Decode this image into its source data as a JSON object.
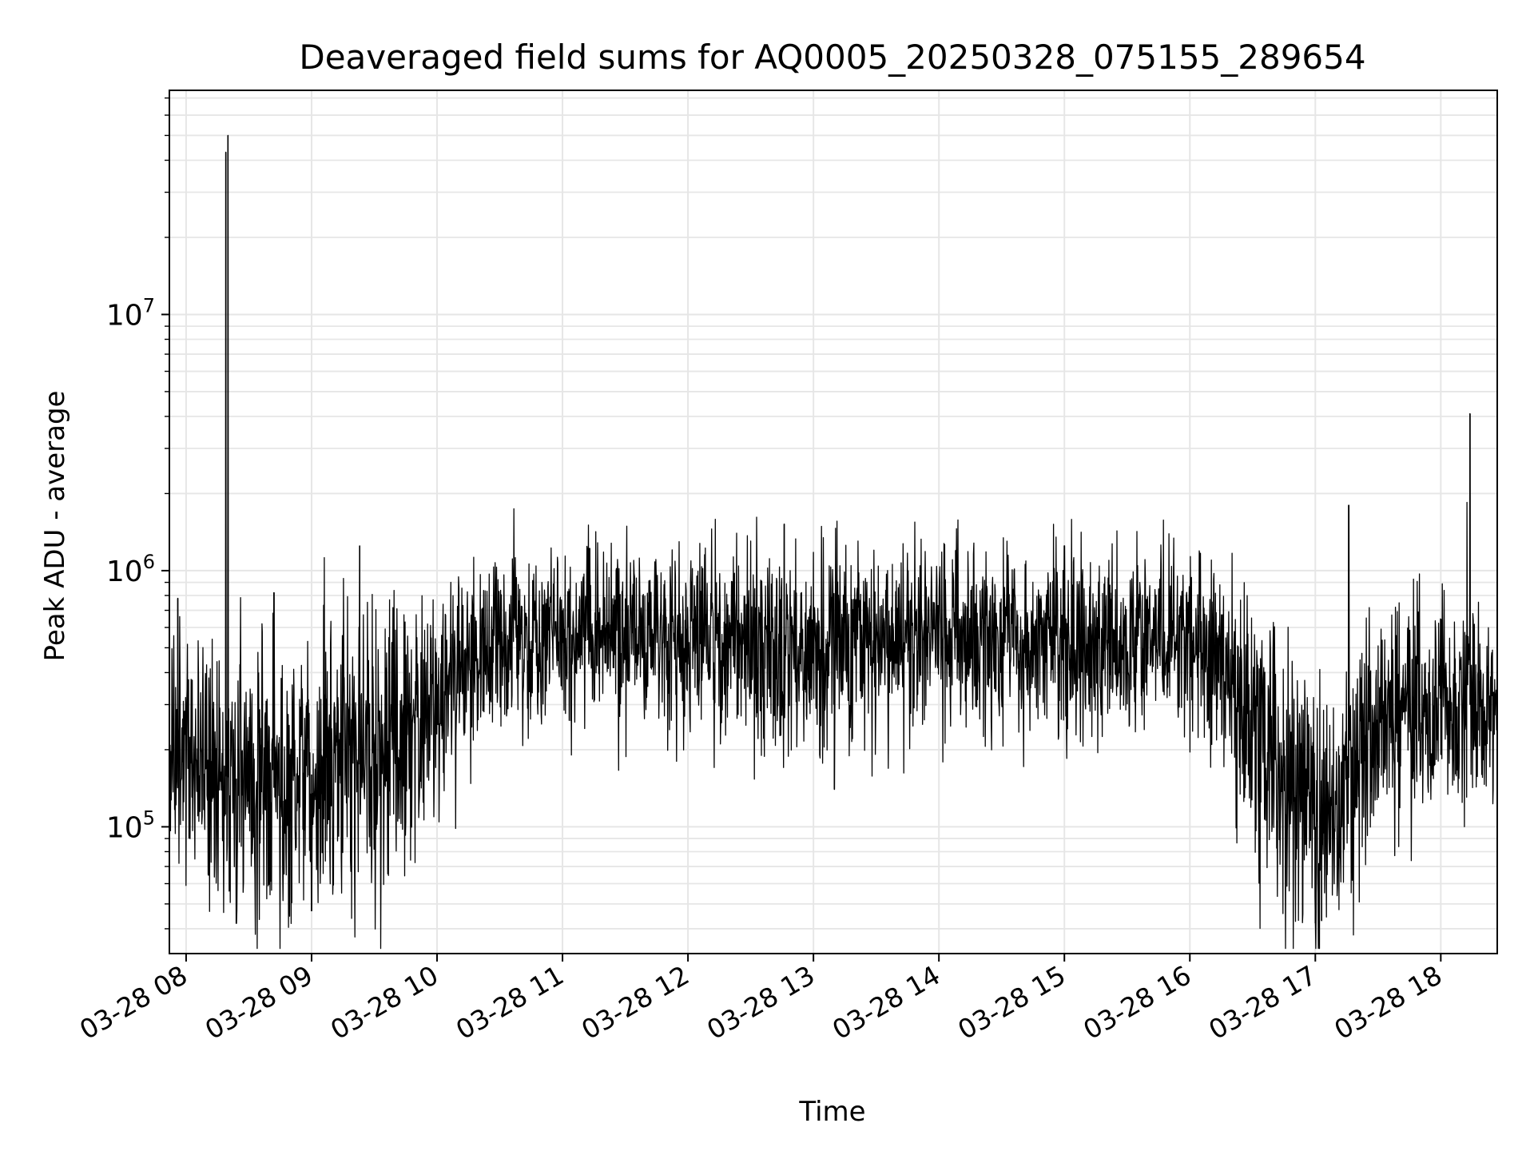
{
  "chart_data": {
    "type": "line",
    "title": "Deaveraged field sums for AQ0005_20250328_075155_289654",
    "xlabel": "Time",
    "ylabel": "Peak ADU - average",
    "yscale": "log",
    "grid": true,
    "line_color": "#000000",
    "grid_color": "#e6e6e6",
    "xlim": [
      "2025-03-28 07:52",
      "2025-03-28 18:27"
    ],
    "ylim": [
      32000,
      75000000
    ],
    "xticks": [
      {
        "label": "03-28 08",
        "time": "2025-03-28 08:00"
      },
      {
        "label": "03-28 09",
        "time": "2025-03-28 09:00"
      },
      {
        "label": "03-28 10",
        "time": "2025-03-28 10:00"
      },
      {
        "label": "03-28 11",
        "time": "2025-03-28 11:00"
      },
      {
        "label": "03-28 12",
        "time": "2025-03-28 12:00"
      },
      {
        "label": "03-28 13",
        "time": "2025-03-28 13:00"
      },
      {
        "label": "03-28 14",
        "time": "2025-03-28 14:00"
      },
      {
        "label": "03-28 15",
        "time": "2025-03-28 15:00"
      },
      {
        "label": "03-28 16",
        "time": "2025-03-28 16:00"
      },
      {
        "label": "03-28 17",
        "time": "2025-03-28 17:00"
      },
      {
        "label": "03-28 18",
        "time": "2025-03-28 18:00"
      }
    ],
    "yticks": [
      {
        "base": "10",
        "exp": "5",
        "value": 100000
      },
      {
        "base": "10",
        "exp": "6",
        "value": 1000000
      },
      {
        "base": "10",
        "exp": "7",
        "value": 10000000
      }
    ],
    "series": [
      {
        "x": [
          "2025-03-28 07:52",
          "2025-03-28 08:00",
          "2025-03-28 08:15",
          "2025-03-28 08:30",
          "2025-03-28 08:45",
          "2025-03-28 09:00",
          "2025-03-28 09:15",
          "2025-03-28 09:30",
          "2025-03-28 09:45",
          "2025-03-28 10:00",
          "2025-03-28 10:15",
          "2025-03-28 10:30",
          "2025-03-28 10:45",
          "2025-03-28 11:00",
          "2025-03-28 11:15",
          "2025-03-28 11:30",
          "2025-03-28 11:45",
          "2025-03-28 12:00",
          "2025-03-28 12:15",
          "2025-03-28 12:30",
          "2025-03-28 12:45",
          "2025-03-28 13:00",
          "2025-03-28 13:15",
          "2025-03-28 13:30",
          "2025-03-28 13:45",
          "2025-03-28 14:00",
          "2025-03-28 14:15",
          "2025-03-28 14:30",
          "2025-03-28 14:45",
          "2025-03-28 15:00",
          "2025-03-28 15:15",
          "2025-03-28 15:30",
          "2025-03-28 15:45",
          "2025-03-28 16:00",
          "2025-03-28 16:15",
          "2025-03-28 16:30",
          "2025-03-28 16:45",
          "2025-03-28 17:00",
          "2025-03-28 17:15",
          "2025-03-28 17:30",
          "2025-03-28 17:45",
          "2025-03-28 18:00",
          "2025-03-28 18:15",
          "2025-03-28 18:27"
        ],
        "y": [
          180000,
          200000,
          160000,
          150000,
          140000,
          160000,
          170000,
          180000,
          200000,
          280000,
          420000,
          520000,
          540000,
          560000,
          580000,
          560000,
          540000,
          530000,
          520000,
          510000,
          500000,
          500000,
          510000,
          520000,
          530000,
          540000,
          550000,
          560000,
          550000,
          540000,
          520000,
          520000,
          530000,
          520000,
          400000,
          260000,
          160000,
          100000,
          150000,
          230000,
          270000,
          290000,
          300000,
          300000
        ],
        "spread": [
          0.2,
          0.22,
          0.24,
          0.26,
          0.26,
          0.28,
          0.28,
          0.28,
          0.26,
          0.22,
          0.18,
          0.17,
          0.17,
          0.17,
          0.17,
          0.17,
          0.18,
          0.19,
          0.19,
          0.19,
          0.19,
          0.19,
          0.19,
          0.19,
          0.19,
          0.18,
          0.18,
          0.18,
          0.18,
          0.18,
          0.18,
          0.18,
          0.18,
          0.18,
          0.2,
          0.22,
          0.26,
          0.26,
          0.24,
          0.22,
          0.22,
          0.22,
          0.22,
          0.22
        ],
        "spikes": [
          {
            "time": "2025-03-28 07:56",
            "value": 780000
          },
          {
            "time": "2025-03-28 08:19",
            "value": 43000000
          },
          {
            "time": "2025-03-28 08:20",
            "value": 50000000
          },
          {
            "time": "2025-03-28 08:24",
            "value": 42000
          },
          {
            "time": "2025-03-28 08:42",
            "value": 820000
          },
          {
            "time": "2025-03-28 09:00",
            "value": 47000
          },
          {
            "time": "2025-03-28 09:23",
            "value": 1250000
          },
          {
            "time": "2025-03-28 11:13",
            "value": 1220000
          },
          {
            "time": "2025-03-28 12:46",
            "value": 1520000
          },
          {
            "time": "2025-03-28 13:10",
            "value": 140000
          },
          {
            "time": "2025-03-28 14:08",
            "value": 1200000
          },
          {
            "time": "2025-03-28 15:00",
            "value": 1250000
          },
          {
            "time": "2025-03-28 16:05",
            "value": 1170000
          },
          {
            "time": "2025-03-28 17:00",
            "value": 42000
          },
          {
            "time": "2025-03-28 17:03",
            "value": 43000
          },
          {
            "time": "2025-03-28 17:16",
            "value": 1800000
          },
          {
            "time": "2025-03-28 18:14",
            "value": 4100000
          }
        ]
      }
    ]
  }
}
